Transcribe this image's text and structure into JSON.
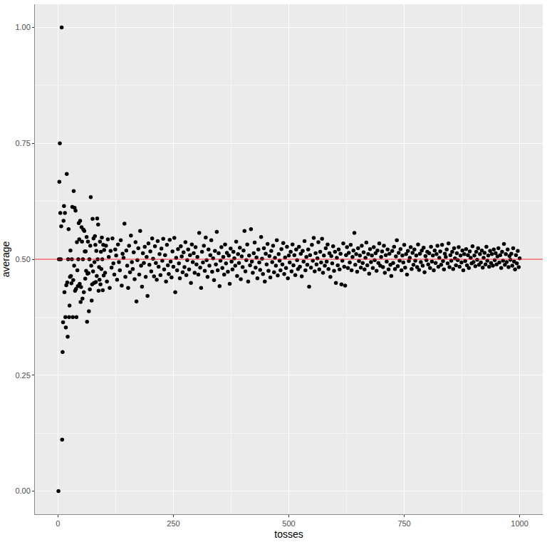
{
  "chart_data": {
    "type": "scatter",
    "x_label": "tosses",
    "y_label": "average",
    "color": "#000000",
    "marker": "circle",
    "grid": true,
    "xlim": [
      -50,
      1050
    ],
    "xticks": [
      0,
      250,
      500,
      750,
      1000
    ],
    "ylim": [
      -0.05,
      1.05
    ],
    "yticks": [
      {
        "value": 0,
        "label": "0.00"
      },
      {
        "value": 0.25,
        "label": "0.25"
      },
      {
        "value": 0.5,
        "label": "0.50"
      },
      {
        "value": 0.75,
        "label": "0.75"
      },
      {
        "value": 1,
        "label": "1.00"
      }
    ],
    "hline": {
      "y": 0.5,
      "color": "#e41a1c"
    },
    "x": [
      1,
      2,
      3,
      4,
      5,
      6,
      7,
      8,
      9,
      10,
      11,
      12,
      13,
      14,
      15,
      16,
      17,
      18,
      19,
      20,
      21,
      22,
      23,
      24,
      25,
      26,
      27,
      28,
      29,
      30,
      31,
      32,
      33,
      34,
      35,
      36,
      37,
      38,
      39,
      40,
      41,
      42,
      43,
      44,
      45,
      46,
      47,
      48,
      49,
      50,
      51,
      52,
      53,
      54,
      55,
      56,
      57,
      58,
      59,
      60,
      61,
      62,
      63,
      64,
      65,
      66,
      67,
      68,
      69,
      70,
      71,
      72,
      73,
      74,
      75,
      76,
      77,
      78,
      79,
      80,
      81,
      82,
      83,
      84,
      85,
      86,
      87,
      88,
      89,
      90,
      91,
      92,
      93,
      94,
      95,
      96,
      97,
      98,
      99,
      100,
      102,
      104,
      106,
      108,
      110,
      112,
      114,
      116,
      118,
      120,
      122,
      124,
      126,
      128,
      130,
      132,
      134,
      136,
      138,
      140,
      142,
      144,
      146,
      148,
      150,
      152,
      154,
      156,
      158,
      160,
      162,
      164,
      166,
      168,
      170,
      172,
      174,
      176,
      178,
      180,
      182,
      184,
      186,
      188,
      190,
      192,
      194,
      196,
      198,
      200,
      202,
      204,
      206,
      208,
      210,
      212,
      214,
      216,
      218,
      220,
      222,
      224,
      226,
      228,
      230,
      232,
      234,
      236,
      238,
      240,
      242,
      244,
      246,
      248,
      250,
      252,
      254,
      256,
      258,
      260,
      262,
      264,
      266,
      268,
      270,
      272,
      274,
      276,
      278,
      280,
      282,
      284,
      286,
      288,
      290,
      292,
      294,
      296,
      298,
      300,
      302,
      304,
      306,
      308,
      310,
      312,
      314,
      316,
      318,
      320,
      322,
      324,
      326,
      328,
      330,
      332,
      334,
      336,
      338,
      340,
      342,
      344,
      346,
      348,
      350,
      352,
      354,
      356,
      358,
      360,
      362,
      364,
      366,
      368,
      370,
      372,
      374,
      376,
      378,
      380,
      382,
      384,
      386,
      388,
      390,
      392,
      394,
      396,
      398,
      400,
      402,
      404,
      406,
      408,
      410,
      412,
      414,
      416,
      418,
      420,
      422,
      424,
      426,
      428,
      430,
      432,
      434,
      436,
      438,
      440,
      442,
      444,
      446,
      448,
      450,
      452,
      454,
      456,
      458,
      460,
      462,
      464,
      466,
      468,
      470,
      472,
      474,
      476,
      478,
      480,
      482,
      484,
      486,
      488,
      490,
      492,
      494,
      496,
      498,
      500,
      502,
      504,
      506,
      508,
      510,
      512,
      514,
      516,
      518,
      520,
      522,
      524,
      526,
      528,
      530,
      532,
      534,
      536,
      538,
      540,
      542,
      544,
      546,
      548,
      550,
      552,
      554,
      556,
      558,
      560,
      562,
      564,
      566,
      568,
      570,
      572,
      574,
      576,
      578,
      580,
      582,
      584,
      586,
      588,
      590,
      592,
      594,
      596,
      598,
      600,
      602,
      604,
      606,
      608,
      610,
      612,
      614,
      616,
      618,
      620,
      622,
      624,
      626,
      628,
      630,
      632,
      634,
      636,
      638,
      640,
      642,
      644,
      646,
      648,
      650,
      652,
      654,
      656,
      658,
      660,
      662,
      664,
      666,
      668,
      670,
      672,
      674,
      676,
      678,
      680,
      682,
      684,
      686,
      688,
      690,
      692,
      694,
      696,
      698,
      700,
      702,
      704,
      706,
      708,
      710,
      712,
      714,
      716,
      718,
      720,
      722,
      724,
      726,
      728,
      730,
      732,
      734,
      736,
      738,
      740,
      742,
      744,
      746,
      748,
      750,
      752,
      754,
      756,
      758,
      760,
      762,
      764,
      766,
      768,
      770,
      772,
      774,
      776,
      778,
      780,
      782,
      784,
      786,
      788,
      790,
      792,
      794,
      796,
      798,
      800,
      802,
      804,
      806,
      808,
      810,
      812,
      814,
      816,
      818,
      820,
      822,
      824,
      826,
      828,
      830,
      832,
      834,
      836,
      838,
      840,
      842,
      844,
      846,
      848,
      850,
      852,
      854,
      856,
      858,
      860,
      862,
      864,
      866,
      868,
      870,
      872,
      874,
      876,
      878,
      880,
      882,
      884,
      886,
      888,
      890,
      892,
      894,
      896,
      898,
      900,
      902,
      904,
      906,
      908,
      910,
      912,
      914,
      916,
      918,
      920,
      922,
      924,
      926,
      928,
      930,
      932,
      934,
      936,
      938,
      940,
      942,
      944,
      946,
      948,
      950,
      952,
      954,
      956,
      958,
      960,
      962,
      964,
      966,
      968,
      970,
      972,
      974,
      976,
      978,
      980,
      982,
      984,
      986,
      988,
      990,
      992,
      994,
      996,
      998,
      1000
    ],
    "values": [
      0,
      0.5,
      0.667,
      0.75,
      0.6,
      0.5,
      0.571,
      1,
      0.111,
      0.3,
      0.364,
      0.583,
      0.615,
      0.429,
      0.6,
      0.375,
      0.353,
      0.444,
      0.684,
      0.45,
      0.333,
      0.5,
      0.565,
      0.375,
      0.4,
      0.462,
      0.519,
      0.464,
      0.448,
      0.5,
      0.613,
      0.375,
      0.455,
      0.647,
      0.486,
      0.611,
      0.432,
      0.605,
      0.436,
      0.375,
      0.537,
      0.476,
      0.442,
      0.5,
      0.578,
      0.543,
      0.447,
      0.583,
      0.408,
      0.44,
      0.569,
      0.538,
      0.415,
      0.5,
      0.564,
      0.429,
      0.561,
      0.517,
      0.458,
      0.517,
      0.475,
      0.548,
      0.365,
      0.469,
      0.538,
      0.47,
      0.388,
      0.5,
      0.435,
      0.529,
      0.634,
      0.486,
      0.411,
      0.446,
      0.587,
      0.474,
      0.545,
      0.449,
      0.494,
      0.55,
      0.531,
      0.451,
      0.518,
      0.464,
      0.588,
      0.5,
      0.575,
      0.432,
      0.483,
      0.456,
      0.538,
      0.446,
      0.516,
      0.479,
      0.547,
      0.5,
      0.433,
      0.531,
      0.465,
      0.52,
      0.471,
      0.529,
      0.452,
      0.543,
      0.505,
      0.438,
      0.518,
      0.482,
      0.545,
      0.491,
      0.467,
      0.521,
      0.508,
      0.456,
      0.532,
      0.494,
      0.476,
      0.541,
      0.443,
      0.512,
      0.503,
      0.577,
      0.462,
      0.519,
      0.486,
      0.438,
      0.529,
      0.472,
      0.551,
      0.494,
      0.479,
      0.515,
      0.457,
      0.537,
      0.409,
      0.498,
      0.524,
      0.467,
      0.561,
      0.486,
      0.441,
      0.513,
      0.492,
      0.527,
      0.462,
      0.505,
      0.421,
      0.534,
      0.488,
      0.517,
      0.474,
      0.545,
      0.501,
      0.463,
      0.528,
      0.492,
      0.456,
      0.539,
      0.484,
      0.511,
      0.466,
      0.523,
      0.497,
      0.544,
      0.478,
      0.509,
      0.452,
      0.531,
      0.487,
      0.468,
      0.542,
      0.495,
      0.461,
      0.517,
      0.484,
      0.546,
      0.429,
      0.503,
      0.476,
      0.522,
      0.491,
      0.459,
      0.528,
      0.506,
      0.472,
      0.515,
      0.483,
      0.537,
      0.466,
      0.498,
      0.521,
      0.478,
      0.509,
      0.449,
      0.532,
      0.494,
      0.513,
      0.471,
      0.526,
      0.489,
      0.505,
      0.467,
      0.557,
      0.482,
      0.438,
      0.516,
      0.493,
      0.529,
      0.475,
      0.547,
      0.498,
      0.462,
      0.521,
      0.486,
      0.509,
      0.541,
      0.473,
      0.502,
      0.455,
      0.518,
      0.489,
      0.559,
      0.476,
      0.513,
      0.442,
      0.497,
      0.526,
      0.481,
      0.505,
      0.467,
      0.532,
      0.491,
      0.514,
      0.473,
      0.508,
      0.447,
      0.523,
      0.495,
      0.478,
      0.516,
      0.502,
      0.486,
      0.538,
      0.464,
      0.511,
      0.492,
      0.525,
      0.457,
      0.506,
      0.483,
      0.519,
      0.561,
      0.474,
      0.498,
      0.532,
      0.452,
      0.508,
      0.487,
      0.565,
      0.495,
      0.471,
      0.513,
      0.536,
      0.482,
      0.504,
      0.459,
      0.521,
      0.493,
      0.477,
      0.548,
      0.501,
      0.468,
      0.524,
      0.452,
      0.512,
      0.489,
      0.533,
      0.475,
      0.507,
      0.461,
      0.518,
      0.494,
      0.529,
      0.472,
      0.503,
      0.486,
      0.541,
      0.465,
      0.511,
      0.497,
      0.476,
      0.522,
      0.489,
      0.535,
      0.468,
      0.504,
      0.481,
      0.527,
      0.459,
      0.508,
      0.493,
      0.516,
      0.474,
      0.532,
      0.487,
      0.509,
      0.466,
      0.521,
      0.498,
      0.479,
      0.527,
      0.484,
      0.512,
      0.463,
      0.518,
      0.495,
      0.539,
      0.476,
      0.505,
      0.488,
      0.521,
      0.441,
      0.509,
      0.482,
      0.531,
      0.497,
      0.546,
      0.474,
      0.513,
      0.489,
      0.502,
      0.537,
      0.478,
      0.516,
      0.493,
      0.544,
      0.471,
      0.508,
      0.486,
      0.524,
      0.495,
      0.532,
      0.479,
      0.513,
      0.462,
      0.507,
      0.491,
      0.528,
      0.475,
      0.516,
      0.449,
      0.503,
      0.487,
      0.521,
      0.478,
      0.512,
      0.446,
      0.497,
      0.534,
      0.484,
      0.443,
      0.509,
      0.526,
      0.481,
      0.514,
      0.493,
      0.531,
      0.476,
      0.505,
      0.519,
      0.557,
      0.488,
      0.511,
      0.473,
      0.524,
      0.496,
      0.508,
      0.482,
      0.529,
      0.492,
      0.515,
      0.478,
      0.503,
      0.536,
      0.487,
      0.511,
      0.469,
      0.522,
      0.494,
      0.508,
      0.481,
      0.526,
      0.498,
      0.513,
      0.475,
      0.519,
      0.492,
      0.534,
      0.486,
      0.505,
      0.517,
      0.483,
      0.529,
      0.471,
      0.509,
      0.495,
      0.521,
      0.478,
      0.512,
      0.488,
      0.464,
      0.518,
      0.492,
      0.527,
      0.479,
      0.506,
      0.541,
      0.485,
      0.514,
      0.497,
      0.522,
      0.476,
      0.508,
      0.493,
      0.531,
      0.482,
      0.511,
      0.467,
      0.518,
      0.496,
      0.503,
      0.526,
      0.479,
      0.514,
      0.488,
      0.521,
      0.497,
      0.508,
      0.483,
      0.532,
      0.477,
      0.512,
      0.494,
      0.519,
      0.486,
      0.525,
      0.472,
      0.507,
      0.498,
      0.516,
      0.489,
      0.513,
      0.481,
      0.527,
      0.495,
      0.508,
      0.476,
      0.519,
      0.492,
      0.511,
      0.529,
      0.484,
      0.503,
      0.517,
      0.488,
      0.531,
      0.496,
      0.478,
      0.512,
      0.505,
      0.521,
      0.491,
      0.534,
      0.483,
      0.509,
      0.497,
      0.516,
      0.479,
      0.524,
      0.502,
      0.487,
      0.513,
      0.498,
      0.526,
      0.484,
      0.508,
      0.493,
      0.519,
      0.476,
      0.511,
      0.496,
      0.522,
      0.487,
      0.509,
      0.481,
      0.517,
      0.503,
      0.491,
      0.528,
      0.494,
      0.508,
      0.485,
      0.516,
      0.499,
      0.524,
      0.488,
      0.511,
      0.493,
      0.519,
      0.482,
      0.503,
      0.514,
      0.489,
      0.527,
      0.497,
      0.508,
      0.484,
      0.518,
      0.492,
      0.511,
      0.486,
      0.521,
      0.498,
      0.513,
      0.489,
      0.506,
      0.524,
      0.493,
      0.509,
      0.481,
      0.516,
      0.497,
      0.533,
      0.488,
      0.511,
      0.494,
      0.521,
      0.483,
      0.507,
      0.499,
      0.512,
      0.486,
      0.524,
      0.495,
      0.478,
      0.509,
      0.491,
      0.518,
      0.483,
      0.502
    ]
  }
}
